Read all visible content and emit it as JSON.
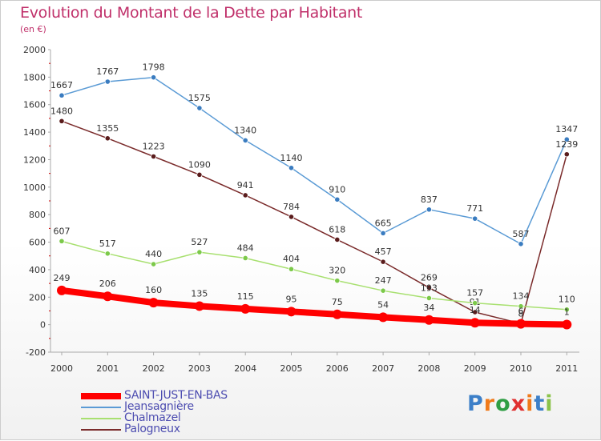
{
  "title": "Evolution du Montant de la Dette par Habitant",
  "subtitle": "(en €)",
  "logo": {
    "letters": [
      "P",
      "r",
      "o",
      "x",
      "i",
      "t",
      "i"
    ],
    "colors": [
      "#3c7fc8",
      "#f07a1a",
      "#2f9e44",
      "#e03030",
      "#f07a1a",
      "#3c7fc8",
      "#8bc34a"
    ]
  },
  "chart_data": {
    "type": "line",
    "x": [
      "2000",
      "2001",
      "2002",
      "2003",
      "2004",
      "2005",
      "2006",
      "2007",
      "2008",
      "2009",
      "2010",
      "2011"
    ],
    "ylim": [
      -200,
      2000
    ],
    "yticks": [
      "-200",
      "0",
      "200",
      "400",
      "600",
      "800",
      "1000",
      "1200",
      "1400",
      "1600",
      "1800",
      "2000"
    ],
    "grid": false,
    "legend_position": "bottom-left",
    "series": [
      {
        "name": "Jeansagnière",
        "color": "#5b9bd5",
        "marker": "#3a7cc0",
        "values": [
          1667,
          1767,
          1798,
          1575,
          1340,
          1140,
          910,
          665,
          837,
          771,
          587,
          1347
        ],
        "labels": [
          "1667",
          "1767",
          "1798",
          "1575",
          "1340",
          "1140",
          "910",
          "665",
          "837",
          "771",
          "587",
          "1347"
        ]
      },
      {
        "name": "Palogneux",
        "color": "#7b2c2c",
        "marker": "#5a1c1c",
        "values": [
          1480,
          1355,
          1223,
          1090,
          941,
          784,
          618,
          457,
          269,
          91,
          8,
          1239
        ],
        "labels": [
          "1480",
          "1355",
          "1223",
          "1090",
          "941",
          "784",
          "618",
          "457",
          "269",
          "91",
          "8",
          "1239"
        ]
      },
      {
        "name": "Chalmazel",
        "color": "#a8e070",
        "marker": "#7cc94a",
        "values": [
          607,
          517,
          440,
          527,
          484,
          404,
          320,
          247,
          193,
          157,
          134,
          110
        ],
        "labels": [
          "607",
          "517",
          "440",
          "527",
          "484",
          "404",
          "320",
          "247",
          "193",
          "157",
          "134",
          "110"
        ]
      },
      {
        "name": "SAINT-JUST-EN-BAS",
        "color": "#ff0000",
        "marker": "#ff0000",
        "values": [
          249,
          206,
          160,
          135,
          115,
          95,
          75,
          54,
          34,
          14,
          6,
          1
        ],
        "labels": [
          "249",
          "206",
          "160",
          "135",
          "115",
          "95",
          "75",
          "54",
          "34",
          "14",
          "6",
          "1"
        ]
      }
    ]
  }
}
